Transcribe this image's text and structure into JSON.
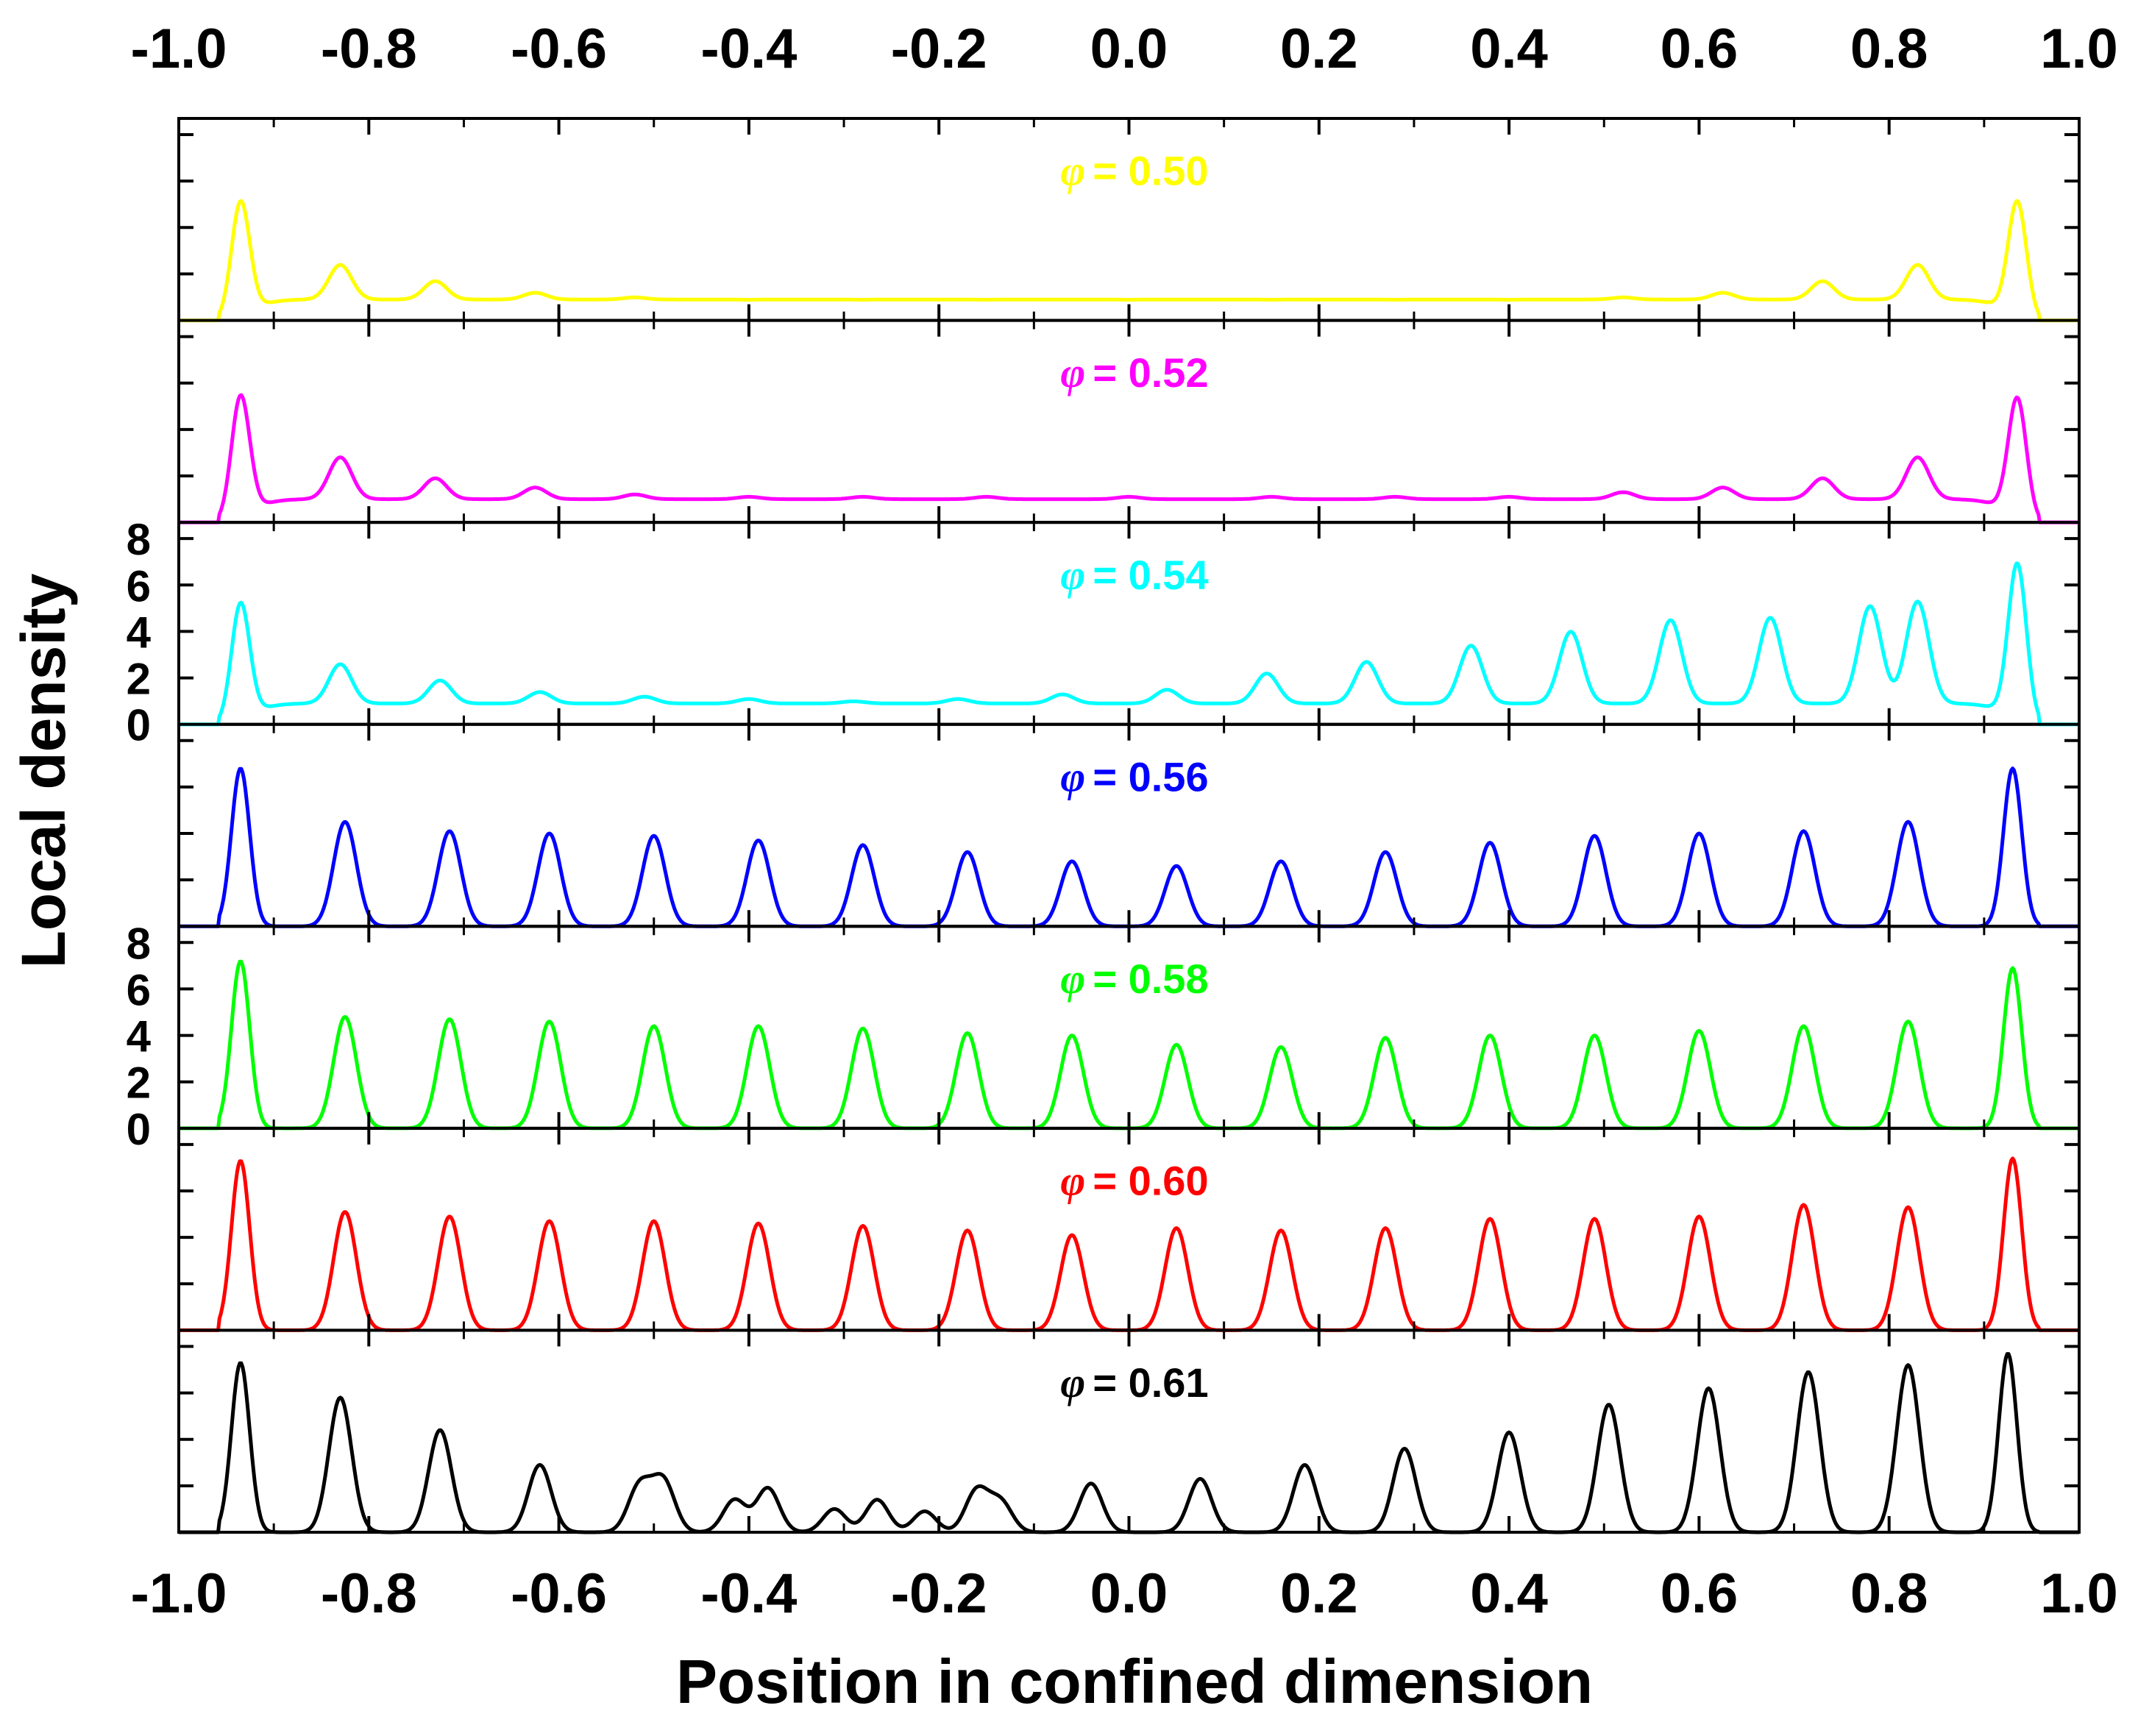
{
  "chart_data": {
    "type": "line",
    "xlabel": "Position in confined dimension",
    "ylabel": "Local density",
    "xlim": [
      -1.0,
      1.0
    ],
    "x_ticks": [
      "-1.0",
      "-0.8",
      "-0.6",
      "-0.4",
      "-0.2",
      "0.0",
      "0.2",
      "0.4",
      "0.6",
      "0.8",
      "1.0"
    ],
    "y_ticks": [
      "0",
      "2",
      "4",
      "6",
      "8"
    ],
    "panel_ylim": [
      0,
      8
    ],
    "grid": false,
    "panels": [
      {
        "label": "= 0.50",
        "phi": "φ",
        "color": "#ffff00",
        "peaks": [
          [
            -0.935,
            5.7
          ],
          [
            -0.83,
            2.3
          ],
          [
            -0.73,
            1.6
          ],
          [
            -0.625,
            1.1
          ],
          [
            -0.52,
            0.9
          ],
          [
            -0.4,
            0.8
          ],
          [
            -0.28,
            0.8
          ],
          [
            -0.15,
            0.8
          ],
          [
            0.0,
            0.8
          ],
          [
            0.15,
            0.8
          ],
          [
            0.28,
            0.8
          ],
          [
            0.4,
            0.8
          ],
          [
            0.52,
            0.9
          ],
          [
            0.625,
            1.1
          ],
          [
            0.73,
            1.6
          ],
          [
            0.83,
            2.3
          ],
          [
            0.935,
            5.7
          ]
        ],
        "baseline": 0.9
      },
      {
        "label": "= 0.52",
        "phi": "φ",
        "color": "#ff00ff",
        "peaks": [
          [
            -0.935,
            6.1
          ],
          [
            -0.83,
            2.7
          ],
          [
            -0.73,
            1.8
          ],
          [
            -0.625,
            1.4
          ],
          [
            -0.52,
            1.1
          ],
          [
            -0.4,
            1.0
          ],
          [
            -0.28,
            1.0
          ],
          [
            -0.15,
            1.0
          ],
          [
            0.0,
            1.0
          ],
          [
            0.15,
            1.0
          ],
          [
            0.28,
            1.0
          ],
          [
            0.4,
            1.0
          ],
          [
            0.52,
            1.2
          ],
          [
            0.625,
            1.4
          ],
          [
            0.73,
            1.8
          ],
          [
            0.83,
            2.7
          ],
          [
            0.935,
            6.0
          ]
        ],
        "baseline": 1.0
      },
      {
        "label": "= 0.54",
        "phi": "φ",
        "color": "#00ffff",
        "peaks": [
          [
            -0.935,
            5.8
          ],
          [
            -0.83,
            2.5
          ],
          [
            -0.725,
            1.8
          ],
          [
            -0.62,
            1.3
          ],
          [
            -0.51,
            1.1
          ],
          [
            -0.4,
            1.0
          ],
          [
            -0.29,
            0.9
          ],
          [
            -0.18,
            1.0
          ],
          [
            -0.07,
            1.2
          ],
          [
            0.04,
            1.4
          ],
          [
            0.145,
            2.1
          ],
          [
            0.25,
            2.6
          ],
          [
            0.36,
            3.3
          ],
          [
            0.465,
            3.9
          ],
          [
            0.57,
            4.4
          ],
          [
            0.675,
            4.5
          ],
          [
            0.78,
            5.0
          ],
          [
            0.83,
            5.2
          ],
          [
            0.935,
            7.5
          ]
        ],
        "baseline": 0.9
      },
      {
        "label": "= 0.56",
        "phi": "φ",
        "color": "#0000ff",
        "peaks": [
          [
            -0.935,
            6.8
          ],
          [
            -0.825,
            4.5
          ],
          [
            -0.715,
            4.1
          ],
          [
            -0.61,
            4.0
          ],
          [
            -0.5,
            3.9
          ],
          [
            -0.39,
            3.7
          ],
          [
            -0.28,
            3.5
          ],
          [
            -0.17,
            3.2
          ],
          [
            -0.06,
            2.8
          ],
          [
            0.05,
            2.6
          ],
          [
            0.16,
            2.8
          ],
          [
            0.27,
            3.2
          ],
          [
            0.38,
            3.6
          ],
          [
            0.49,
            3.9
          ],
          [
            0.6,
            4.0
          ],
          [
            0.71,
            4.1
          ],
          [
            0.82,
            4.5
          ],
          [
            0.93,
            6.8
          ]
        ],
        "baseline": 0.0
      },
      {
        "label": "= 0.58",
        "phi": "φ",
        "color": "#00ff00",
        "peaks": [
          [
            -0.935,
            7.2
          ],
          [
            -0.825,
            4.8
          ],
          [
            -0.715,
            4.7
          ],
          [
            -0.61,
            4.6
          ],
          [
            -0.5,
            4.4
          ],
          [
            -0.39,
            4.4
          ],
          [
            -0.28,
            4.3
          ],
          [
            -0.17,
            4.1
          ],
          [
            -0.06,
            4.0
          ],
          [
            0.05,
            3.6
          ],
          [
            0.16,
            3.5
          ],
          [
            0.27,
            3.9
          ],
          [
            0.38,
            4.0
          ],
          [
            0.49,
            4.0
          ],
          [
            0.6,
            4.2
          ],
          [
            0.71,
            4.4
          ],
          [
            0.82,
            4.6
          ],
          [
            0.93,
            6.9
          ]
        ],
        "baseline": 0.0
      },
      {
        "label": "= 0.60",
        "phi": "φ",
        "color": "#ff0000",
        "peaks": [
          [
            -0.935,
            7.3
          ],
          [
            -0.825,
            5.1
          ],
          [
            -0.715,
            4.9
          ],
          [
            -0.61,
            4.7
          ],
          [
            -0.5,
            4.7
          ],
          [
            -0.39,
            4.6
          ],
          [
            -0.28,
            4.5
          ],
          [
            -0.17,
            4.3
          ],
          [
            -0.06,
            4.1
          ],
          [
            0.05,
            4.4
          ],
          [
            0.16,
            4.3
          ],
          [
            0.27,
            4.4
          ],
          [
            0.38,
            4.8
          ],
          [
            0.49,
            4.8
          ],
          [
            0.6,
            4.9
          ],
          [
            0.71,
            5.4
          ],
          [
            0.82,
            5.3
          ],
          [
            0.93,
            7.4
          ]
        ],
        "baseline": 0.0
      },
      {
        "label": "= 0.61",
        "phi": "φ",
        "color": "#000000",
        "peaks": [
          [
            -0.935,
            7.3
          ],
          [
            -0.83,
            5.8
          ],
          [
            -0.725,
            4.4
          ],
          [
            -0.62,
            2.9
          ],
          [
            -0.515,
            2.0
          ],
          [
            -0.49,
            2.2
          ],
          [
            -0.415,
            1.4
          ],
          [
            -0.38,
            1.9
          ],
          [
            -0.31,
            1.0
          ],
          [
            -0.265,
            1.4
          ],
          [
            -0.215,
            0.9
          ],
          [
            -0.16,
            1.8
          ],
          [
            -0.135,
            1.3
          ],
          [
            -0.04,
            2.1
          ],
          [
            0.075,
            2.3
          ],
          [
            0.185,
            2.9
          ],
          [
            0.29,
            3.6
          ],
          [
            0.4,
            4.3
          ],
          [
            0.505,
            5.5
          ],
          [
            0.61,
            6.2
          ],
          [
            0.715,
            6.9
          ],
          [
            0.82,
            7.2
          ],
          [
            0.925,
            7.7
          ]
        ],
        "baseline": 0.0
      }
    ]
  }
}
